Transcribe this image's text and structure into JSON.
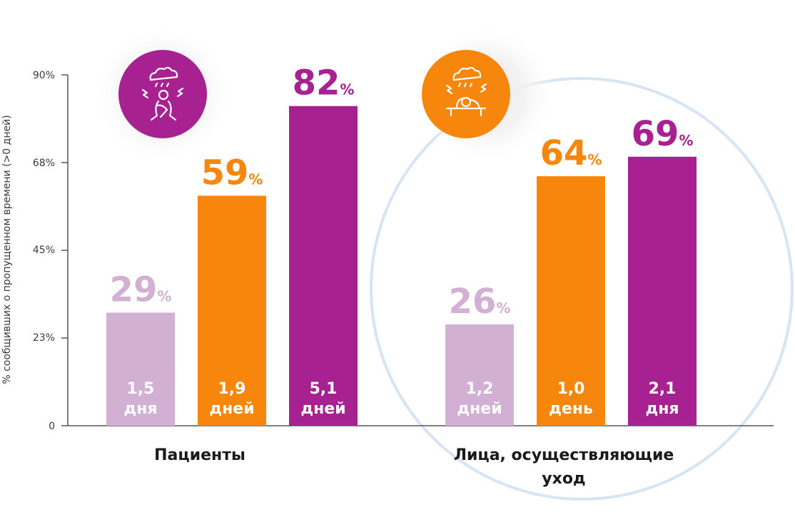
{
  "colors": {
    "light": "#d2b0d3",
    "orange": "#f7860c",
    "purple": "#a72190",
    "axis": "#555555",
    "highlight_circle": "#d6e4f3"
  },
  "icons": {
    "patients": "storm-cloud-stressed-person-icon",
    "caregivers": "storm-cloud-person-resting-on-desk-icon"
  },
  "chart_data": {
    "type": "bar",
    "ylabel": "% сообщивших о пропущенном времени (>0 дней)",
    "ylim": [
      0,
      90
    ],
    "yticks": [
      "0",
      "23%",
      "45%",
      "68%",
      "90%"
    ],
    "ytick_values": [
      0,
      22.5,
      45,
      67.5,
      90
    ],
    "groups": [
      {
        "label": "Пациенты",
        "bars": [
          {
            "value": 29,
            "pct_num": "29",
            "pct_sign": "%",
            "days_line1": "1,5",
            "days_line2": "дня",
            "color": "light"
          },
          {
            "value": 59,
            "pct_num": "59",
            "pct_sign": "%",
            "days_line1": "1,9",
            "days_line2": "дней",
            "color": "orange"
          },
          {
            "value": 82,
            "pct_num": "82",
            "pct_sign": "%",
            "days_line1": "5,1",
            "days_line2": "дней",
            "color": "purple"
          }
        ]
      },
      {
        "label_line1": "Лица, осуществляющие",
        "label_line2": "уход",
        "bars": [
          {
            "value": 26,
            "pct_num": "26",
            "pct_sign": "%",
            "days_line1": "1,2",
            "days_line2": "дней",
            "color": "light"
          },
          {
            "value": 64,
            "pct_num": "64",
            "pct_sign": "%",
            "days_line1": "1,0",
            "days_line2": "день",
            "color": "orange"
          },
          {
            "value": 69,
            "pct_num": "69",
            "pct_sign": "%",
            "days_line1": "2,1",
            "days_line2": "дня",
            "color": "purple"
          }
        ]
      }
    ]
  }
}
